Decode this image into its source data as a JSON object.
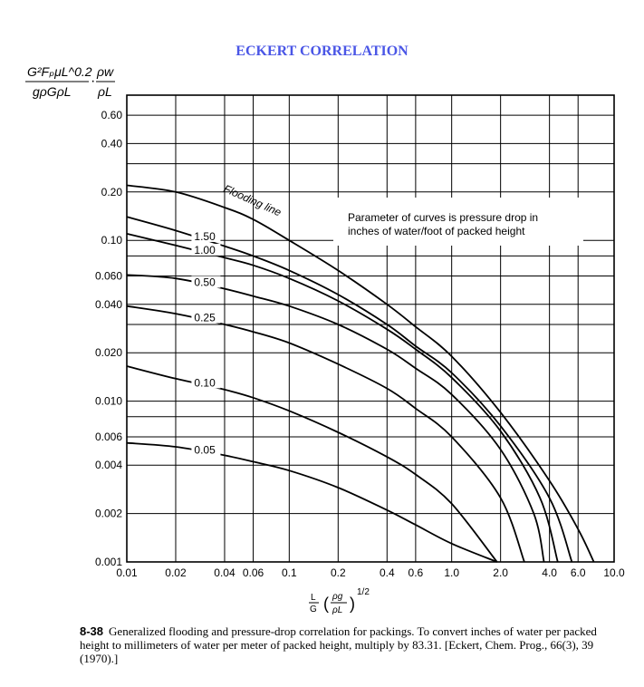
{
  "colors": {
    "title": "#4a56e6",
    "ink": "#000000"
  },
  "chart_data": {
    "type": "line",
    "title": "ECKERT CORRELATION",
    "ylabel": {
      "numerator_left": "G²FₚμL^0.2",
      "numerator_right": "ρw",
      "denominator_left": "gρGρL",
      "denominator_right": "ρL",
      "dot": "·"
    },
    "xlabel": {
      "frac_num": "L",
      "frac_den": "G",
      "inner_num": "ρg",
      "inner_den": "ρL",
      "exponent": "1/2"
    },
    "xscale": "log",
    "yscale": "log",
    "xlim": [
      0.01,
      10.0
    ],
    "ylim": [
      0.001,
      0.8
    ],
    "x_ticks": [
      "0.01",
      "0.02",
      "0.04",
      "0.06",
      "0.1",
      "0.2",
      "0.4",
      "0.6",
      "1.0",
      "2.0",
      "4.0",
      "6.0",
      "10.0"
    ],
    "y_ticks": [
      "0.60",
      "0.40",
      "0.20",
      "0.10",
      "0.060",
      "0.040",
      "0.020",
      "0.010",
      "0.006",
      "0.004",
      "0.002",
      "0.001"
    ],
    "annotation": [
      "Parameter of curves is pressure drop in",
      "inches of water/foot of packed height"
    ],
    "series": [
      {
        "name": "Flooding line",
        "x": [
          0.01,
          0.02,
          0.04,
          0.06,
          0.1,
          0.2,
          0.4,
          0.6,
          1.0,
          2.0,
          4.0,
          6.0,
          7.5
        ],
        "y": [
          0.22,
          0.2,
          0.16,
          0.135,
          0.1,
          0.065,
          0.04,
          0.029,
          0.019,
          0.0085,
          0.0032,
          0.0016,
          0.001
        ]
      },
      {
        "name": "1.50",
        "x": [
          0.01,
          0.02,
          0.04,
          0.06,
          0.1,
          0.2,
          0.4,
          0.6,
          1.0,
          2.0,
          4.0,
          5.5
        ],
        "y": [
          0.14,
          0.115,
          0.092,
          0.08,
          0.065,
          0.046,
          0.03,
          0.022,
          0.015,
          0.007,
          0.0025,
          0.001
        ]
      },
      {
        "name": "1.00",
        "x": [
          0.01,
          0.02,
          0.04,
          0.06,
          0.1,
          0.2,
          0.4,
          0.6,
          1.0,
          2.0,
          3.5,
          4.5
        ],
        "y": [
          0.11,
          0.093,
          0.078,
          0.07,
          0.058,
          0.042,
          0.028,
          0.021,
          0.014,
          0.0065,
          0.0025,
          0.001
        ]
      },
      {
        "name": "0.50",
        "x": [
          0.01,
          0.02,
          0.04,
          0.06,
          0.1,
          0.2,
          0.4,
          0.6,
          1.0,
          2.0,
          3.2,
          3.7
        ],
        "y": [
          0.061,
          0.058,
          0.05,
          0.045,
          0.039,
          0.03,
          0.021,
          0.016,
          0.011,
          0.005,
          0.002,
          0.001
        ]
      },
      {
        "name": "0.25",
        "x": [
          0.01,
          0.02,
          0.04,
          0.06,
          0.1,
          0.2,
          0.4,
          0.6,
          1.0,
          2.0,
          2.8
        ],
        "y": [
          0.039,
          0.035,
          0.03,
          0.027,
          0.023,
          0.017,
          0.012,
          0.009,
          0.006,
          0.0025,
          0.001
        ]
      },
      {
        "name": "0.10",
        "x": [
          0.01,
          0.02,
          0.04,
          0.06,
          0.1,
          0.2,
          0.4,
          0.6,
          1.0,
          1.9
        ],
        "y": [
          0.0165,
          0.0138,
          0.0118,
          0.0105,
          0.0087,
          0.0064,
          0.0045,
          0.0035,
          0.0023,
          0.001
        ]
      },
      {
        "name": "0.05",
        "x": [
          0.01,
          0.02,
          0.04,
          0.06,
          0.1,
          0.2,
          0.4,
          0.6,
          1.0,
          1.9
        ],
        "y": [
          0.0055,
          0.0052,
          0.0046,
          0.0042,
          0.0037,
          0.0029,
          0.0021,
          0.0017,
          0.0013,
          0.001
        ]
      }
    ],
    "flood_label": "Flooding line"
  },
  "caption": {
    "fig": "8-38",
    "text": "Generalized flooding and pressure-drop correlation for packings. To convert inches of water per packed height to millimeters of water per meter of packed height, multiply by 83.31. [Eckert, Chem. Prog., 66(3), 39 (1970).]"
  }
}
